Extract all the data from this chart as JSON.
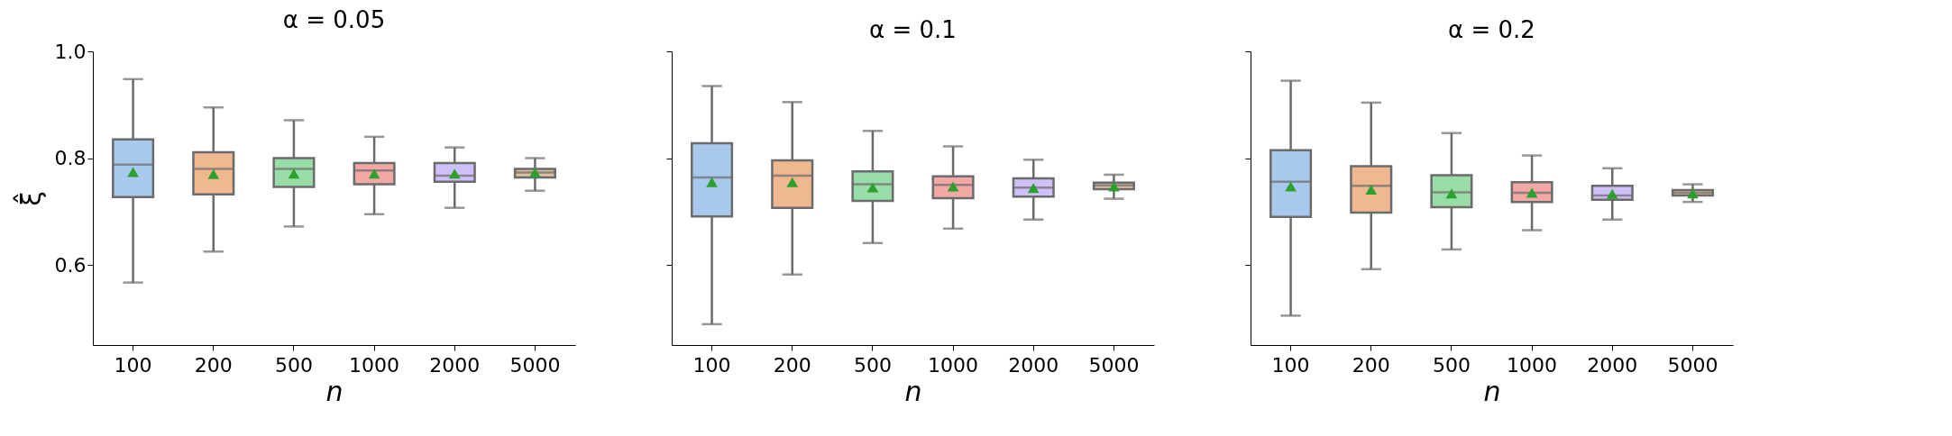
{
  "chart_data": [
    {
      "type": "box",
      "title": "α = 0.05",
      "xlabel": "n",
      "ylabel": "ξ̂",
      "categories": [
        "100",
        "200",
        "500",
        "1000",
        "2000",
        "5000"
      ],
      "colors": [
        "#a8c8ec",
        "#f0b890",
        "#98dca8",
        "#f2a8a4",
        "#d0c0f8",
        "#dcc0a0"
      ],
      "boxes": [
        {
          "low": 0.567,
          "q1": 0.727,
          "median": 0.788,
          "q3": 0.835,
          "high": 0.948,
          "mean": 0.774
        },
        {
          "low": 0.625,
          "q1": 0.732,
          "median": 0.78,
          "q3": 0.811,
          "high": 0.895,
          "mean": 0.77
        },
        {
          "low": 0.672,
          "q1": 0.746,
          "median": 0.78,
          "q3": 0.8,
          "high": 0.871,
          "mean": 0.771
        },
        {
          "low": 0.695,
          "q1": 0.751,
          "median": 0.777,
          "q3": 0.791,
          "high": 0.84,
          "mean": 0.771
        },
        {
          "low": 0.707,
          "q1": 0.756,
          "median": 0.767,
          "q3": 0.791,
          "high": 0.82,
          "mean": 0.771
        },
        {
          "low": 0.739,
          "q1": 0.764,
          "median": 0.773,
          "q3": 0.78,
          "high": 0.8,
          "mean": 0.773
        }
      ],
      "ylim": [
        0.45,
        1.0
      ],
      "yticks": [
        0.6,
        0.8,
        {
          "value": 1.0,
          "label": "1.0"
        }
      ],
      "marker": "triangle"
    },
    {
      "type": "box",
      "title": "α = 0.1",
      "xlabel": "n",
      "categories": [
        "100",
        "200",
        "500",
        "1000",
        "2000",
        "5000"
      ],
      "colors": [
        "#a8c8ec",
        "#f0b890",
        "#98dca8",
        "#f2a8a4",
        "#d0c0f8",
        "#dcc0a0"
      ],
      "boxes": [
        {
          "low": 0.489,
          "q1": 0.691,
          "median": 0.764,
          "q3": 0.828,
          "high": 0.935,
          "mean": 0.755
        },
        {
          "low": 0.582,
          "q1": 0.707,
          "median": 0.767,
          "q3": 0.796,
          "high": 0.905,
          "mean": 0.755
        },
        {
          "low": 0.641,
          "q1": 0.72,
          "median": 0.751,
          "q3": 0.775,
          "high": 0.851,
          "mean": 0.745
        },
        {
          "low": 0.668,
          "q1": 0.725,
          "median": 0.75,
          "q3": 0.766,
          "high": 0.822,
          "mean": 0.747
        },
        {
          "low": 0.685,
          "q1": 0.728,
          "median": 0.745,
          "q3": 0.762,
          "high": 0.797,
          "mean": 0.744
        },
        {
          "low": 0.724,
          "q1": 0.742,
          "median": 0.749,
          "q3": 0.754,
          "high": 0.769,
          "mean": 0.747
        }
      ],
      "ylim": [
        0.45,
        1.0
      ],
      "yticks": [
        0.6,
        0.8,
        1.0
      ],
      "tick_labels": "x",
      "marker": "triangle"
    },
    {
      "type": "box",
      "title": "α = 0.2",
      "xlabel": "n",
      "categories": [
        "100",
        "200",
        "500",
        "1000",
        "2000",
        "5000"
      ],
      "colors": [
        "#a8c8ec",
        "#f0b890",
        "#98dca8",
        "#f2a8a4",
        "#d0c0f8",
        "#dcc0a0"
      ],
      "boxes": [
        {
          "low": 0.505,
          "q1": 0.69,
          "median": 0.756,
          "q3": 0.815,
          "high": 0.945,
          "mean": 0.747
        },
        {
          "low": 0.592,
          "q1": 0.698,
          "median": 0.748,
          "q3": 0.785,
          "high": 0.904,
          "mean": 0.741
        },
        {
          "low": 0.629,
          "q1": 0.708,
          "median": 0.736,
          "q3": 0.768,
          "high": 0.847,
          "mean": 0.734
        },
        {
          "low": 0.665,
          "q1": 0.718,
          "median": 0.735,
          "q3": 0.755,
          "high": 0.805,
          "mean": 0.735
        },
        {
          "low": 0.685,
          "q1": 0.722,
          "median": 0.73,
          "q3": 0.748,
          "high": 0.781,
          "mean": 0.733
        },
        {
          "low": 0.718,
          "q1": 0.73,
          "median": 0.735,
          "q3": 0.74,
          "high": 0.751,
          "mean": 0.734
        }
      ],
      "ylim": [
        0.45,
        1.0
      ],
      "yticks": [
        0.6,
        0.8,
        1.0
      ],
      "tick_labels": "x",
      "marker": "triangle"
    }
  ]
}
